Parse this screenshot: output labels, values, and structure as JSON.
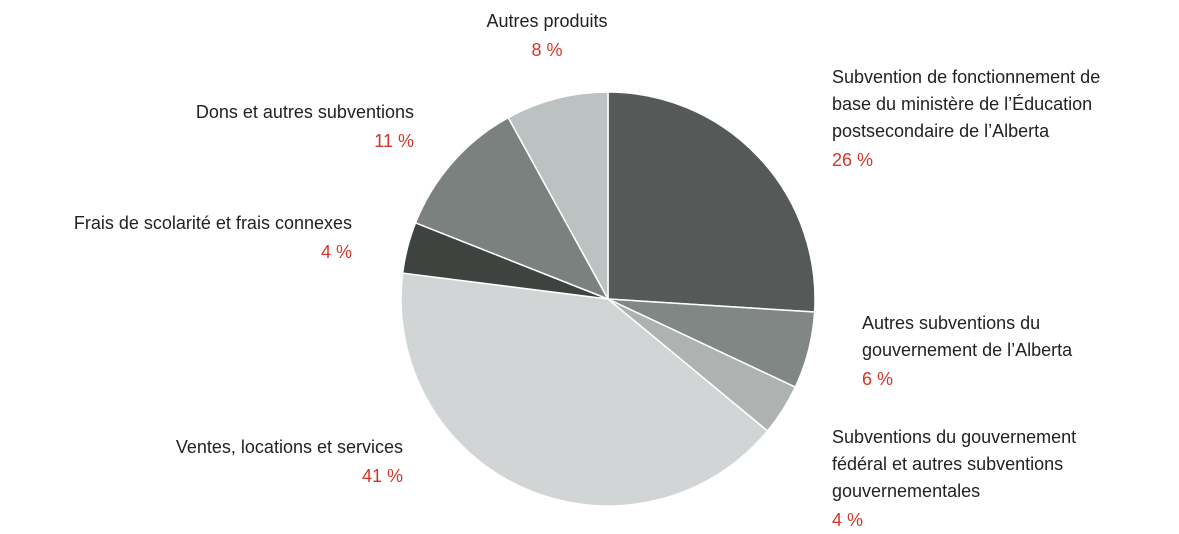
{
  "chart_data": {
    "type": "pie",
    "start_angle_deg": 0,
    "direction": "clockwise",
    "slices": [
      {
        "label": "Subvention de fonctionnement de\nbase du ministère de l’Éducation\npostsecondaire de l’Alberta",
        "value": 26,
        "display": "26 %",
        "color": "#555a58"
      },
      {
        "label": "Autres subventions du\ngouvernement de l’Alberta",
        "value": 6,
        "display": "6 %",
        "color": "#808785"
      },
      {
        "label": "Subventions du gouvernement\nfédéral et autres subventions\ngouvernementales",
        "value": 4,
        "display": "4 %",
        "color": "#aeb3b2"
      },
      {
        "label": "Ventes, locations et services",
        "value": 41,
        "display": "41 %",
        "color": "#d2d5d6"
      },
      {
        "label": "Frais de scolarité et frais connexes",
        "value": 4,
        "display": "4 %",
        "color": "#3f4340"
      },
      {
        "label": "Dons et autres subventions",
        "value": 11,
        "display": "11 %",
        "color": "#7a817f"
      },
      {
        "label": "Autres produits",
        "value": 8,
        "display": "8 %",
        "color": "#bcc1c1"
      }
    ],
    "label_color": "#222222",
    "value_color": "#d0362a",
    "separator_color": "#ffffff"
  }
}
